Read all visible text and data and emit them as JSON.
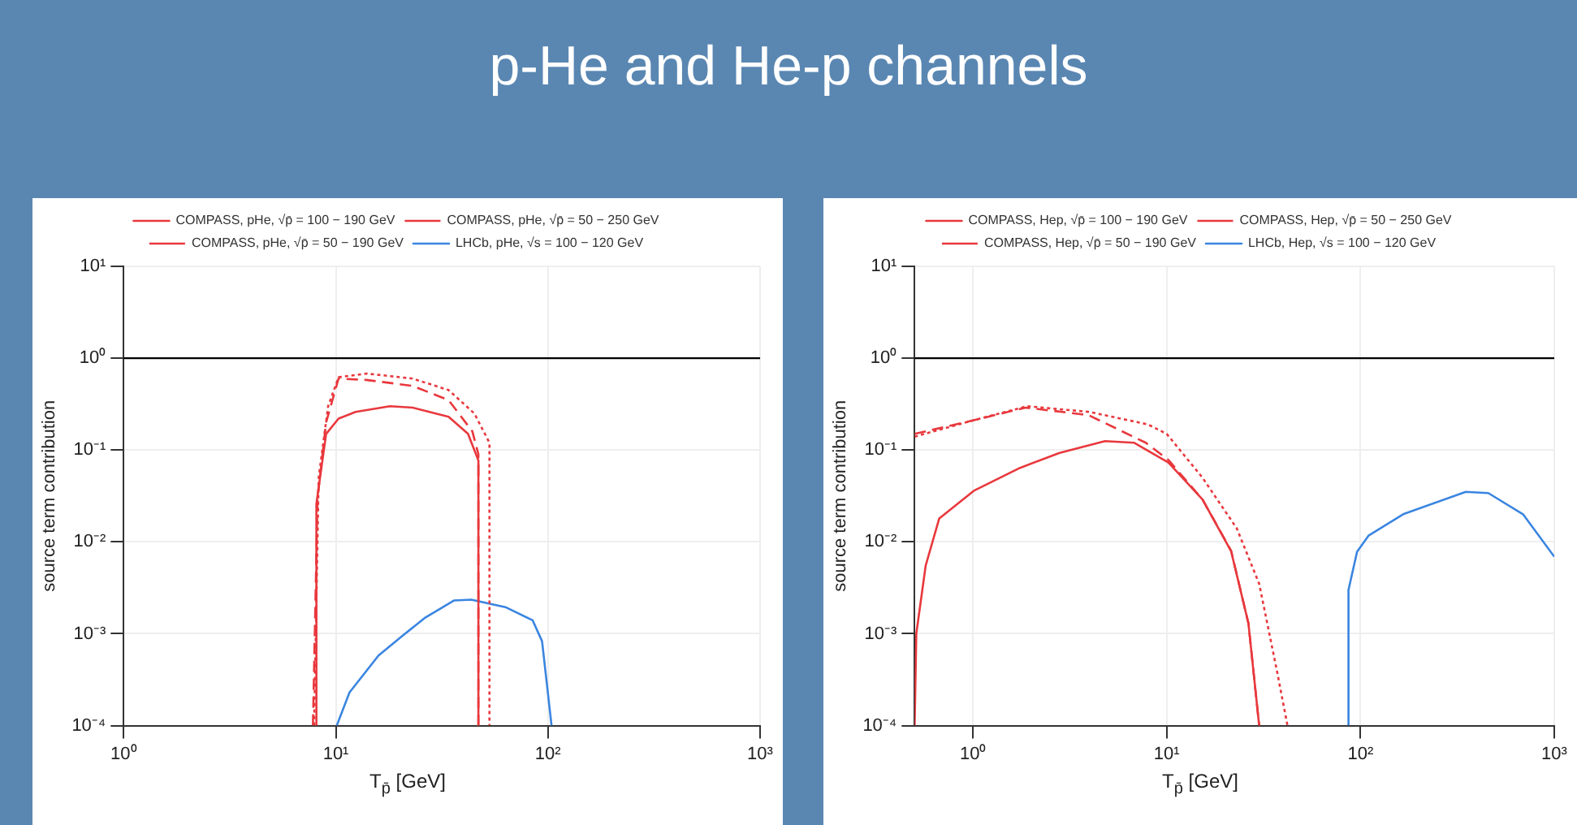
{
  "chart_data": [
    {
      "type": "line",
      "title": "p-He and He-p channels",
      "xlabel": "T$_{p̄}$ [GeV]",
      "ylabel": "source term contribution",
      "log": "xy",
      "grid": true,
      "legend": "top",
      "marker": "none",
      "xlim": [
        1,
        1000
      ],
      "xticks": [
        {
          "value": 1,
          "label": "10⁰"
        },
        {
          "value": 10,
          "label": "10¹"
        },
        {
          "value": 100,
          "label": "10²"
        },
        {
          "value": 1000,
          "label": "10³"
        }
      ],
      "ylim": [
        0.0001,
        10
      ],
      "yticks": [
        {
          "value": 0.0001,
          "label": "10⁻⁴"
        },
        {
          "value": 0.001,
          "label": "10⁻³"
        },
        {
          "value": 0.01,
          "label": "10⁻²"
        },
        {
          "value": 0.1,
          "label": "10⁻¹"
        },
        {
          "value": 1,
          "label": "10⁰"
        },
        {
          "value": 10,
          "label": "10¹"
        }
      ],
      "ref_lines": [
        {
          "axis": "y",
          "value": 1,
          "color": "#000000"
        }
      ],
      "series": [
        {
          "name": "COMPASS, pHe, √p̄ = 100 − 190 GeV",
          "color": "#e8383d",
          "line_style": "solid",
          "x": [
            8.0,
            8.1,
            9.0,
            10.3,
            12.4,
            18,
            23,
            34,
            42,
            47,
            47
          ],
          "values": [
            0.0001,
            0.026,
            0.15,
            0.22,
            0.26,
            0.3,
            0.29,
            0.23,
            0.15,
            0.077,
            0.0001
          ]
        },
        {
          "name": "COMPASS, pHe, √p̄ = 50 − 250 GeV",
          "color": "#e8383d",
          "line_style": "dotted",
          "x": [
            7.9,
            8.3,
            9.2,
            10.3,
            14,
            23,
            34,
            45,
            53,
            53
          ],
          "values": [
            0.0001,
            0.05,
            0.3,
            0.62,
            0.68,
            0.6,
            0.45,
            0.25,
            0.12,
            0.0001
          ]
        },
        {
          "name": "COMPASS, pHe, √p̄ = 50 − 190 GeV",
          "color": "#e8383d",
          "line_style": "dashed",
          "x": [
            7.8,
            8.2,
            9,
            10.3,
            13.9,
            23,
            34,
            44,
            47,
            47
          ],
          "values": [
            0.0001,
            0.03,
            0.2,
            0.6,
            0.58,
            0.5,
            0.35,
            0.16,
            0.09,
            0.0001
          ]
        },
        {
          "name": "LHCb, pHe, √s = 100 − 120 GeV",
          "color": "#3a85e0",
          "line_style": "solid",
          "x": [
            10.1,
            11.6,
            15.9,
            20.5,
            26.4,
            36,
            43.5,
            63,
            84.7,
            93.8,
            104
          ],
          "values": [
            0.0001,
            0.00023,
            0.00058,
            0.00094,
            0.0015,
            0.0023,
            0.00235,
            0.00195,
            0.0014,
            0.00083,
            0.0001
          ]
        }
      ]
    },
    {
      "type": "line",
      "xlabel": "T$_{p̄}$ [GeV]",
      "ylabel": "source term contribution",
      "log": "xy",
      "grid": true,
      "legend": "top",
      "marker": "none",
      "xlim": [
        0.5,
        1000
      ],
      "xticks": [
        {
          "value": 1,
          "label": "10⁰"
        },
        {
          "value": 10,
          "label": "10¹"
        },
        {
          "value": 100,
          "label": "10²"
        },
        {
          "value": 1000,
          "label": "10³"
        }
      ],
      "ylim": [
        0.0001,
        10
      ],
      "yticks": [
        {
          "value": 0.0001,
          "label": "10⁻⁴"
        },
        {
          "value": 0.001,
          "label": "10⁻³"
        },
        {
          "value": 0.01,
          "label": "10⁻²"
        },
        {
          "value": 0.1,
          "label": "10⁻¹"
        },
        {
          "value": 1,
          "label": "10⁰"
        },
        {
          "value": 10,
          "label": "10¹"
        }
      ],
      "ref_lines": [
        {
          "axis": "y",
          "value": 1,
          "color": "#000000"
        }
      ],
      "series": [
        {
          "name": "COMPASS, Hep, √p̄ = 100 − 190 GeV",
          "color": "#e8383d",
          "line_style": "solid",
          "x": [
            0.5,
            0.51,
            0.57,
            0.67,
            1.01,
            1.75,
            2.8,
            4.8,
            6.8,
            10.2,
            15.3,
            21.5,
            26.4,
            30
          ],
          "values": [
            0.0001,
            0.001,
            0.0055,
            0.018,
            0.036,
            0.064,
            0.093,
            0.125,
            0.12,
            0.073,
            0.029,
            0.0079,
            0.0013,
            0.0001
          ]
        },
        {
          "name": "COMPASS, Hep, √p̄ = 50 − 250 GeV",
          "color": "#e8383d",
          "line_style": "dotted",
          "x": [
            0.5,
            1.0,
            1.9,
            4,
            8,
            10,
            15.3,
            23,
            30,
            37,
            42
          ],
          "values": [
            0.14,
            0.21,
            0.3,
            0.26,
            0.19,
            0.15,
            0.05,
            0.014,
            0.0035,
            0.0004,
            0.0001
          ]
        },
        {
          "name": "COMPASS, Hep, √p̄ = 50 − 190 GeV",
          "color": "#e8383d",
          "line_style": "dashed",
          "x": [
            0.5,
            1.0,
            1.87,
            3.95,
            7.8,
            10.2,
            15.3,
            21.5,
            26.4,
            30
          ],
          "values": [
            0.15,
            0.21,
            0.29,
            0.24,
            0.12,
            0.078,
            0.029,
            0.008,
            0.0013,
            0.0001
          ]
        },
        {
          "name": "LHCb, Hep, √s = 100 − 120 GeV",
          "color": "#3a85e0",
          "line_style": "solid",
          "x": [
            86.7,
            86.7,
            96,
            110,
            166,
            349,
            457,
            690,
            1000
          ],
          "values": [
            0.0001,
            0.003,
            0.0078,
            0.0117,
            0.02,
            0.035,
            0.034,
            0.02,
            0.0069
          ]
        }
      ]
    }
  ]
}
